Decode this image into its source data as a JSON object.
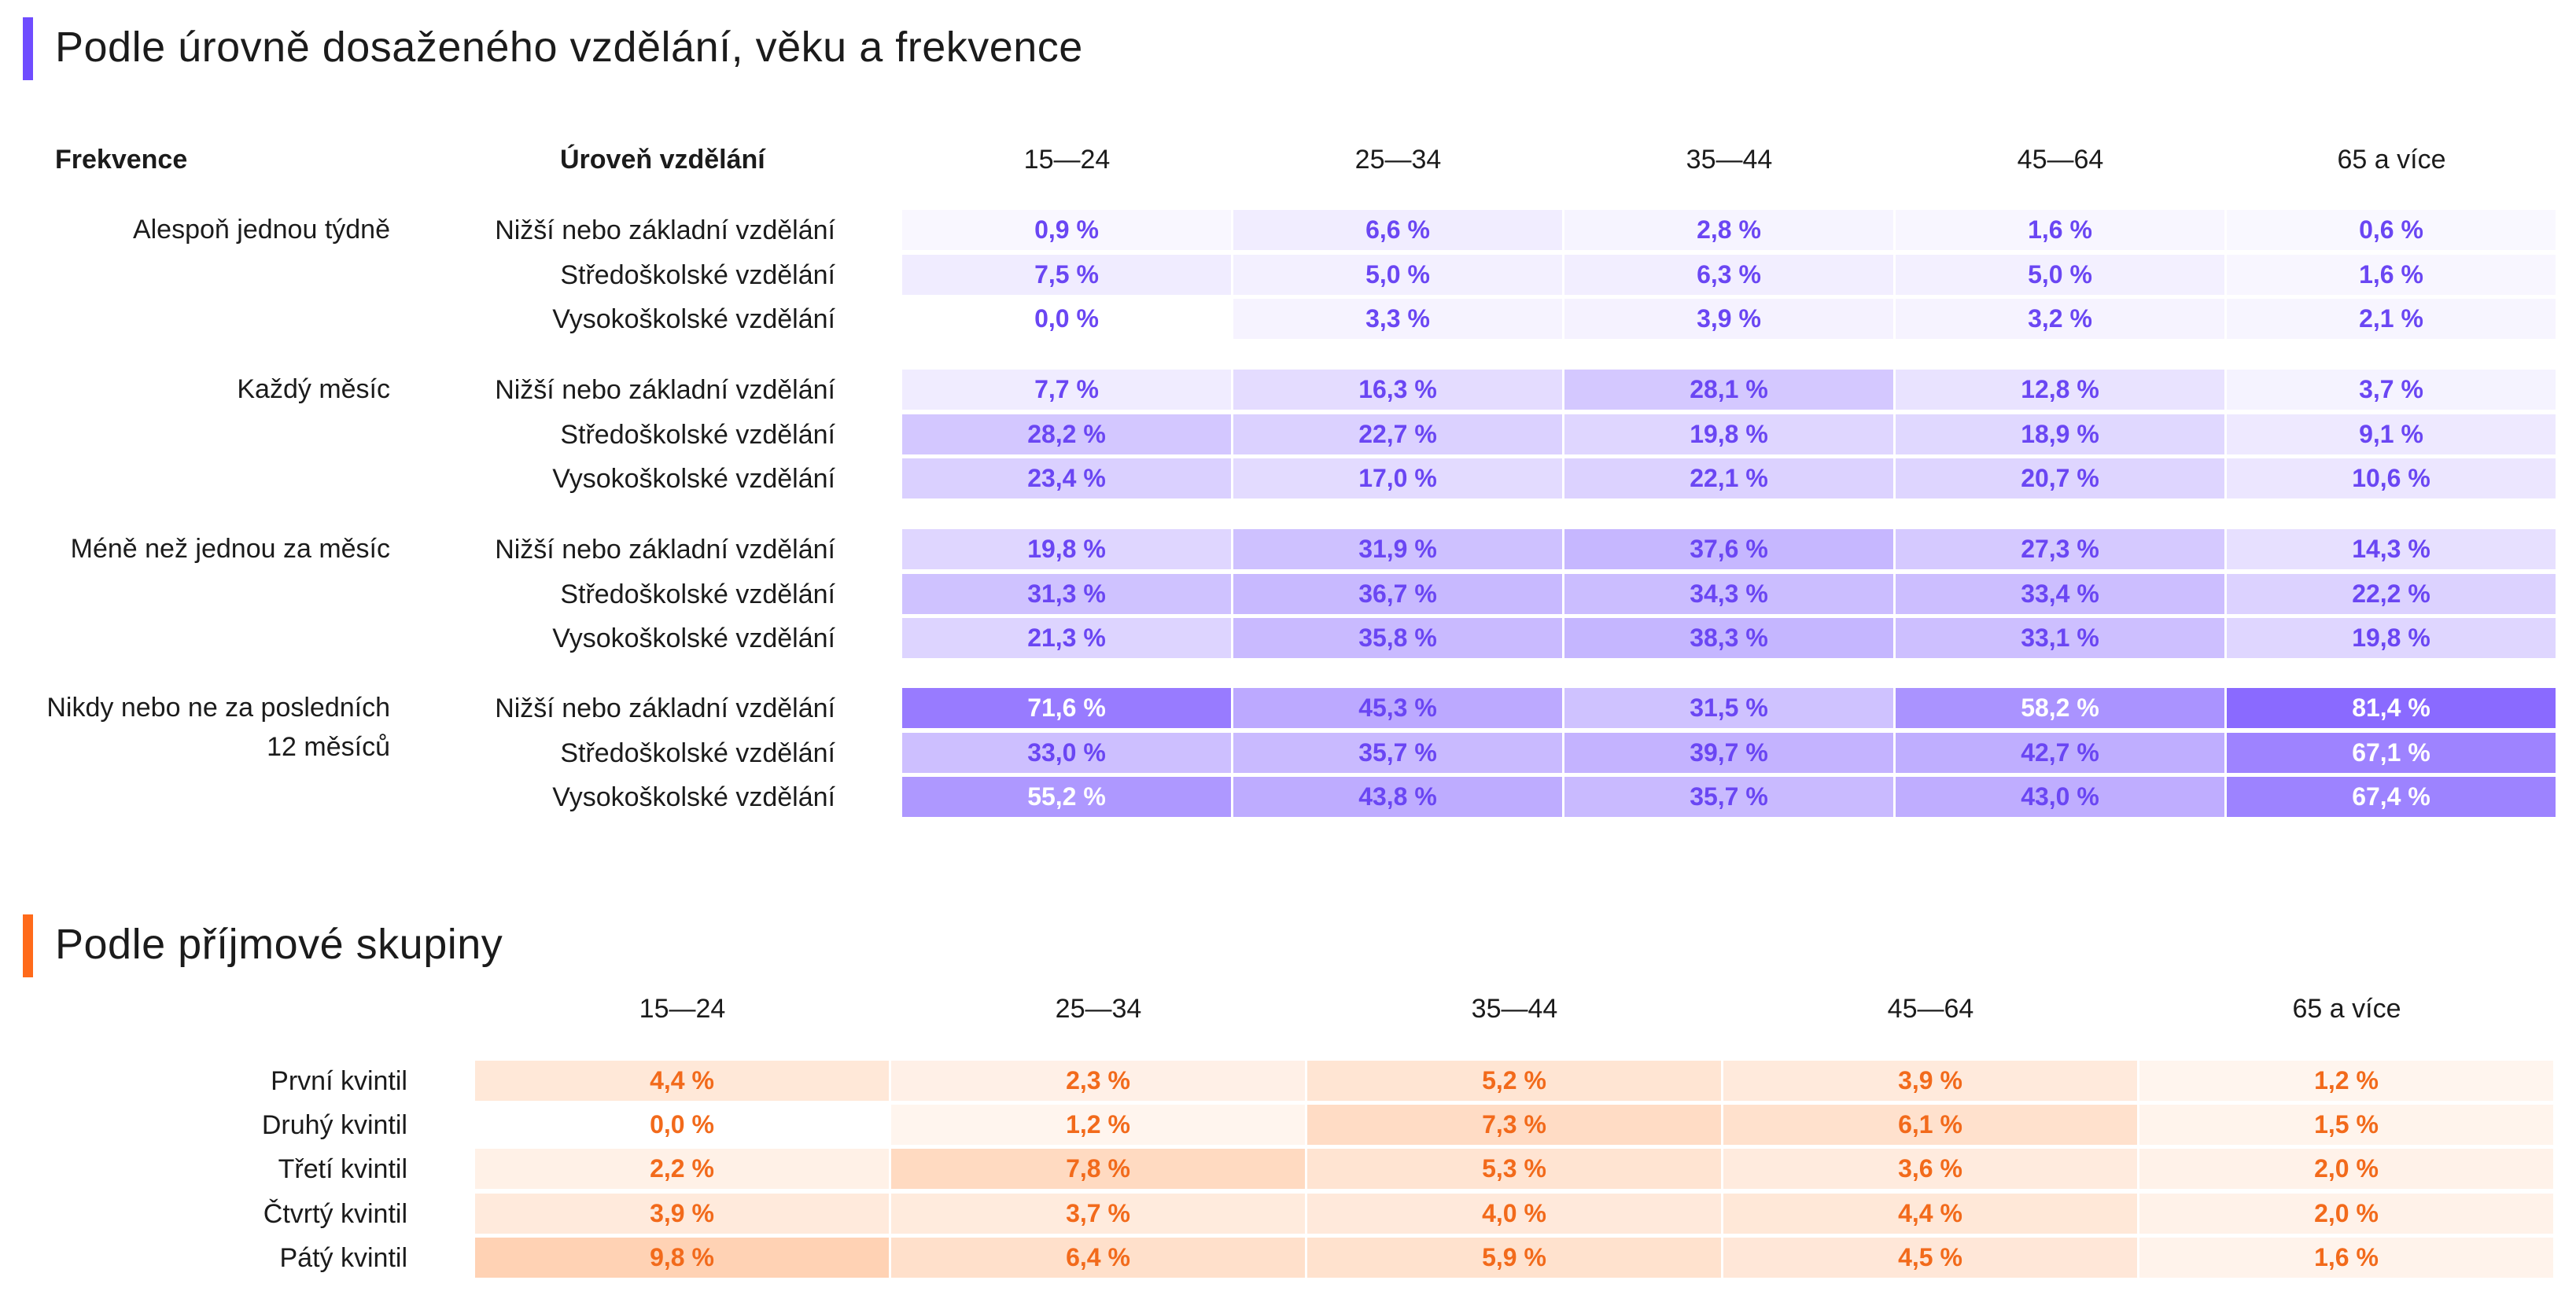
{
  "colors": {
    "purple_accent": "#6f4cff",
    "purple_text": "#6a46f3",
    "orange_accent": "#ff6a1a",
    "orange_text": "#f26a1b"
  },
  "chart_data": [
    {
      "type": "heatmap",
      "title": "Podle úrovně dosaženého vzdělání, věku a frekvence",
      "row_header_group": "Frekvence",
      "row_header_sub": "Úroveň vzdělání",
      "columns": [
        "15—24",
        "25—34",
        "35—44",
        "45—64",
        "65 a více"
      ],
      "groups": [
        {
          "frequency": "Alespoň jednou týdně",
          "rows": [
            {
              "education": "Nižší nebo základní vzdělání",
              "values": [
                0.9,
                6.6,
                2.8,
                1.6,
                0.6
              ],
              "labels": [
                "0,9 %",
                "6,6 %",
                "2,8 %",
                "1,6 %",
                "0,6 %"
              ]
            },
            {
              "education": "Středoškolské vzdělání",
              "values": [
                7.5,
                5.0,
                6.3,
                5.0,
                1.6
              ],
              "labels": [
                "7,5 %",
                "5,0 %",
                "6,3 %",
                "5,0 %",
                "1,6 %"
              ]
            },
            {
              "education": "Vysokoškolské vzdělání",
              "values": [
                0.0,
                3.3,
                3.9,
                3.2,
                2.1
              ],
              "labels": [
                "0,0 %",
                "3,3 %",
                "3,9 %",
                "3,2 %",
                "2,1 %"
              ]
            }
          ]
        },
        {
          "frequency": "Každý měsíc",
          "rows": [
            {
              "education": "Nižší nebo základní vzdělání",
              "values": [
                7.7,
                16.3,
                28.1,
                12.8,
                3.7
              ],
              "labels": [
                "7,7 %",
                "16,3 %",
                "28,1 %",
                "12,8 %",
                "3,7 %"
              ]
            },
            {
              "education": "Středoškolské vzdělání",
              "values": [
                28.2,
                22.7,
                19.8,
                18.9,
                9.1
              ],
              "labels": [
                "28,2 %",
                "22,7 %",
                "19,8 %",
                "18,9 %",
                "9,1 %"
              ]
            },
            {
              "education": "Vysokoškolské vzdělání",
              "values": [
                23.4,
                17.0,
                22.1,
                20.7,
                10.6
              ],
              "labels": [
                "23,4 %",
                "17,0 %",
                "22,1 %",
                "20,7 %",
                "10,6 %"
              ]
            }
          ]
        },
        {
          "frequency": "Méně než jednou za měsíc",
          "rows": [
            {
              "education": "Nižší nebo základní vzdělání",
              "values": [
                19.8,
                31.9,
                37.6,
                27.3,
                14.3
              ],
              "labels": [
                "19,8 %",
                "31,9 %",
                "37,6 %",
                "27,3 %",
                "14,3 %"
              ]
            },
            {
              "education": "Středoškolské vzdělání",
              "values": [
                31.3,
                36.7,
                34.3,
                33.4,
                22.2
              ],
              "labels": [
                "31,3 %",
                "36,7 %",
                "34,3 %",
                "33,4 %",
                "22,2 %"
              ]
            },
            {
              "education": "Vysokoškolské vzdělání",
              "values": [
                21.3,
                35.8,
                38.3,
                33.1,
                19.8
              ],
              "labels": [
                "21,3 %",
                "35,8 %",
                "38,3 %",
                "33,1 %",
                "19,8 %"
              ]
            }
          ]
        },
        {
          "frequency": "Nikdy nebo ne za posledních 12 měsíců",
          "rows": [
            {
              "education": "Nižší nebo základní vzdělání",
              "values": [
                71.6,
                45.3,
                31.5,
                58.2,
                81.4
              ],
              "labels": [
                "71,6 %",
                "45,3 %",
                "31,5 %",
                "58,2 %",
                "81,4 %"
              ]
            },
            {
              "education": "Středoškolské vzdělání",
              "values": [
                33.0,
                35.7,
                39.7,
                42.7,
                67.1
              ],
              "labels": [
                "33,0 %",
                "35,7 %",
                "39,7 %",
                "42,7 %",
                "67,1 %"
              ]
            },
            {
              "education": "Vysokoškolské vzdělání",
              "values": [
                55.2,
                43.8,
                35.7,
                43.0,
                67.4
              ],
              "labels": [
                "55,2 %",
                "43,8 %",
                "35,7 %",
                "43,0 %",
                "67,4 %"
              ]
            }
          ]
        }
      ]
    },
    {
      "type": "heatmap",
      "title": "Podle příjmové skupiny",
      "columns": [
        "15—24",
        "25—34",
        "35—44",
        "45—64",
        "65 a více"
      ],
      "rows": [
        {
          "label": "První kvintil",
          "values": [
            4.4,
            2.3,
            5.2,
            3.9,
            1.2
          ],
          "labels": [
            "4,4 %",
            "2,3 %",
            "5,2 %",
            "3,9 %",
            "1,2 %"
          ]
        },
        {
          "label": "Druhý kvintil",
          "values": [
            0.0,
            1.2,
            7.3,
            6.1,
            1.5
          ],
          "labels": [
            "0,0 %",
            "1,2 %",
            "7,3 %",
            "6,1 %",
            "1,5 %"
          ]
        },
        {
          "label": "Třetí kvintil",
          "values": [
            2.2,
            7.8,
            5.3,
            3.6,
            2.0
          ],
          "labels": [
            "2,2 %",
            "7,8 %",
            "5,3 %",
            "3,6 %",
            "2,0 %"
          ]
        },
        {
          "label": "Čtvrtý kvintil",
          "values": [
            3.9,
            3.7,
            4.0,
            4.4,
            2.0
          ],
          "labels": [
            "3,9 %",
            "3,7 %",
            "4,0 %",
            "4,4 %",
            "2,0 %"
          ]
        },
        {
          "label": "Pátý kvintil",
          "values": [
            9.8,
            6.4,
            5.9,
            4.5,
            1.6
          ],
          "labels": [
            "9,8 %",
            "6,4 %",
            "5,9 %",
            "4,5 %",
            "1,6 %"
          ]
        }
      ]
    }
  ]
}
